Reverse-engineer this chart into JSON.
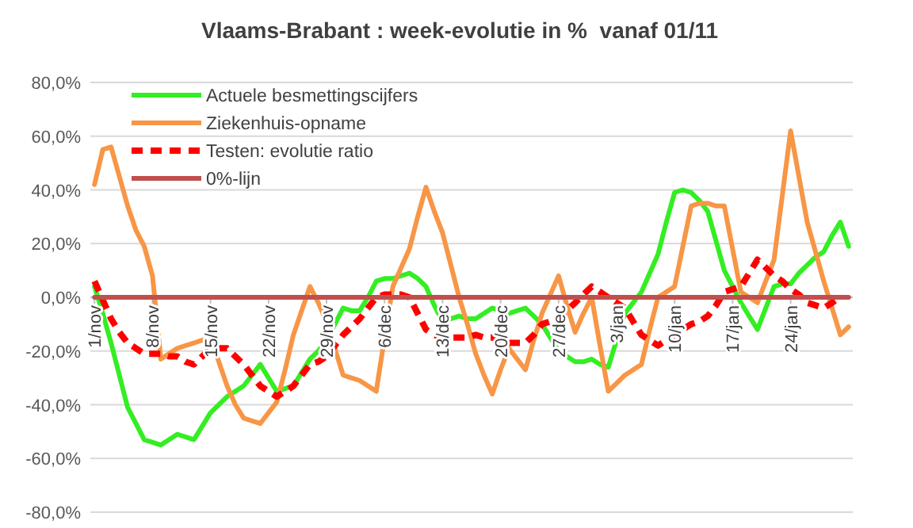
{
  "chart_data": {
    "type": "line",
    "title": "Vlaams-Brabant : week-evolutie in %  vanaf 01/11",
    "categories": [
      "1/nov",
      null,
      null,
      null,
      null,
      null,
      null,
      "8/nov",
      null,
      null,
      null,
      null,
      null,
      null,
      "15/nov",
      null,
      null,
      null,
      null,
      null,
      null,
      "22/nov",
      null,
      null,
      null,
      null,
      null,
      null,
      "29/nov",
      null,
      null,
      null,
      null,
      null,
      null,
      "6/dec",
      null,
      null,
      null,
      null,
      null,
      null,
      "13/dec",
      null,
      null,
      null,
      null,
      null,
      null,
      "20/dec",
      null,
      null,
      null,
      null,
      null,
      null,
      "27/dec",
      null,
      null,
      null,
      null,
      null,
      null,
      "3/jan",
      null,
      null,
      null,
      null,
      null,
      null,
      "10/jan",
      null,
      null,
      null,
      null,
      null,
      null,
      "17/jan",
      null,
      null,
      null,
      null,
      null,
      null,
      "24/jan",
      null,
      null,
      null,
      null,
      null,
      null,
      null
    ],
    "series": [
      {
        "name": "Actuele besmettingscijfers",
        "color": "#33ee22",
        "values": [
          4,
          -6,
          -17,
          -29,
          -41,
          -47,
          -53,
          -54,
          -55,
          -53,
          -51,
          -52,
          -53,
          -48,
          -43,
          -40,
          -37,
          -35,
          -33,
          -29,
          -25,
          -30,
          -35,
          -34,
          -33,
          -28,
          -23,
          -20,
          -16,
          -10,
          -4,
          -5,
          -5,
          0,
          6,
          7,
          7,
          8,
          9,
          7,
          4,
          -3,
          -9,
          -8,
          -7,
          -8,
          -8,
          -6,
          -4,
          -5,
          -6,
          -5,
          -4,
          -7,
          -10,
          -15,
          -20,
          -22,
          -24,
          -24,
          -23,
          -25,
          -26,
          -16,
          -6,
          -2,
          2,
          9,
          16,
          28,
          39,
          40,
          39,
          36,
          32,
          21,
          10,
          4,
          -2,
          -7,
          -12,
          -4,
          4,
          5,
          5,
          9,
          12,
          15,
          17,
          23,
          28,
          19
        ]
      },
      {
        "name": "Ziekenhuis-opname",
        "color": "#f79646",
        "values": [
          42,
          55,
          56,
          45,
          34,
          25,
          19,
          8,
          -23,
          -21,
          -19,
          -18,
          -17,
          -16,
          -15,
          -24,
          -33,
          -40,
          -45,
          -46,
          -47,
          -43,
          -39,
          -27,
          -14,
          -5,
          4,
          -2,
          -9,
          -19,
          -29,
          -30,
          -31,
          -33,
          -35,
          -15,
          4,
          11,
          18,
          30,
          41,
          32,
          24,
          12,
          0,
          -10,
          -21,
          -29,
          -36,
          -27,
          -19,
          -23,
          -27,
          -16,
          -6,
          1,
          8,
          -3,
          -13,
          -6,
          0,
          -18,
          -35,
          -32,
          -29,
          -27,
          -25,
          -12,
          0,
          2,
          4,
          19,
          34,
          35,
          35,
          34,
          34,
          18,
          2,
          0,
          -2,
          6,
          14,
          38,
          62,
          45,
          28,
          17,
          6,
          -4,
          -14,
          -11
        ]
      },
      {
        "name": "Testen: evolutie ratio",
        "color": "#ff0000",
        "line_style": "dashed",
        "values": [
          6,
          -1,
          -8,
          -13,
          -17,
          -19,
          -21,
          -21,
          -21,
          -22,
          -22,
          -24,
          -25,
          -22,
          -19,
          -19,
          -19,
          -22,
          -25,
          -29,
          -33,
          -35,
          -37,
          -35,
          -33,
          -29,
          -25,
          -24,
          -22,
          -18,
          -14,
          -11,
          -8,
          -4,
          0,
          1,
          1,
          1,
          0,
          -6,
          -12,
          -14,
          -15,
          -15,
          -15,
          -15,
          -14,
          -15,
          -15,
          -16,
          -17,
          -17,
          -17,
          -14,
          -10,
          -9,
          -8,
          -5,
          -2,
          1,
          4,
          2,
          0,
          -2,
          -4,
          -9,
          -14,
          -16,
          -18,
          -16,
          -14,
          -12,
          -10,
          -9,
          -7,
          -3,
          2,
          3,
          4,
          9,
          14,
          11,
          8,
          6,
          3,
          1,
          -2,
          -3,
          -4,
          -2,
          0,
          null
        ]
      },
      {
        "name": "0%-lijn",
        "color": "#c0504d",
        "values": [
          0,
          0,
          0,
          0,
          0,
          0,
          0,
          0,
          0,
          0,
          0,
          0,
          0,
          0,
          0,
          0,
          0,
          0,
          0,
          0,
          0,
          0,
          0,
          0,
          0,
          0,
          0,
          0,
          0,
          0,
          0,
          0,
          0,
          0,
          0,
          0,
          0,
          0,
          0,
          0,
          0,
          0,
          0,
          0,
          0,
          0,
          0,
          0,
          0,
          0,
          0,
          0,
          0,
          0,
          0,
          0,
          0,
          0,
          0,
          0,
          0,
          0,
          0,
          0,
          0,
          0,
          0,
          0,
          0,
          0,
          0,
          0,
          0,
          0,
          0,
          0,
          0,
          0,
          0,
          0,
          0,
          0,
          0,
          0,
          0,
          0,
          0,
          0,
          0,
          0,
          0,
          0
        ]
      }
    ],
    "ylim": [
      -80,
      80
    ],
    "yticks": [
      {
        "value": -80,
        "label": "-80,0%"
      },
      {
        "value": -60,
        "label": "-60,0%"
      },
      {
        "value": -40,
        "label": "-40,0%"
      },
      {
        "value": -20,
        "label": "-20,0%"
      },
      {
        "value": 0,
        "label": "0,0%"
      },
      {
        "value": 20,
        "label": "20,0%"
      },
      {
        "value": 40,
        "label": "40,0%"
      },
      {
        "value": 60,
        "label": "60,0%"
      },
      {
        "value": 80,
        "label": "80,0%"
      }
    ],
    "grid": "y",
    "legend": "top left",
    "marker": "none"
  }
}
